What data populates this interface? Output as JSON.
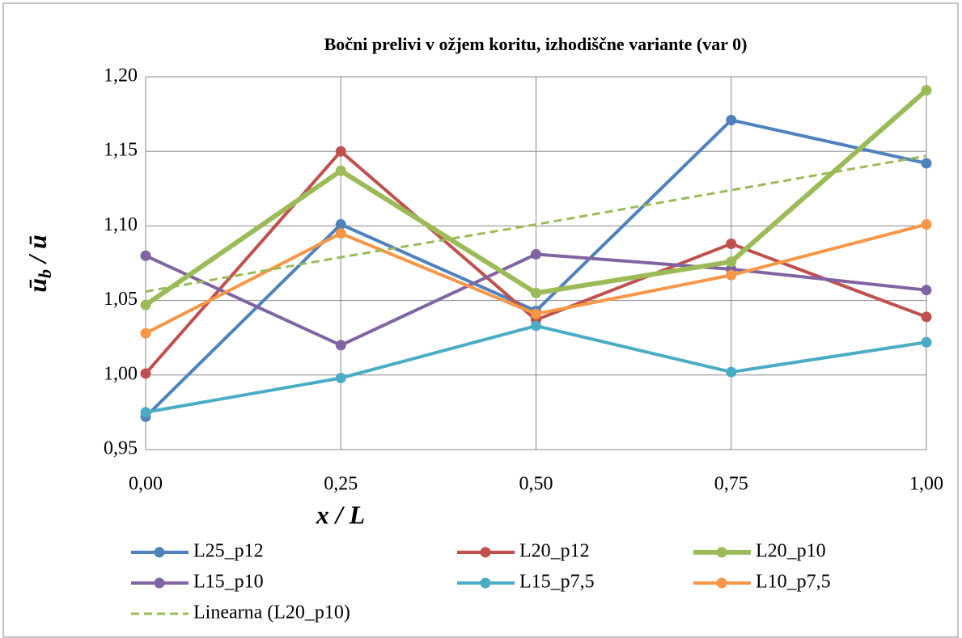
{
  "chart_data": {
    "type": "line",
    "title": "Bočni prelivi v ožjem koritu, izhodiščne variante (var 0)",
    "x_label": "x / L",
    "y_label": [
      "ū",
      "b",
      " / ū"
    ],
    "x": [
      0,
      0.25,
      0.5,
      0.75,
      1
    ],
    "xlim": [
      0,
      1
    ],
    "xticks": [
      {
        "value": 0,
        "label": "0,00"
      },
      {
        "value": 0.25,
        "label": "0,25"
      },
      {
        "value": 0.5,
        "label": "0,50"
      },
      {
        "value": 0.75,
        "label": "0,75"
      },
      {
        "value": 1,
        "label": "1,00"
      }
    ],
    "ylim": [
      0.95,
      1.2
    ],
    "yticks": [
      {
        "value": 0.95,
        "label": "0,95"
      },
      {
        "value": 1.0,
        "label": "1,00"
      },
      {
        "value": 1.05,
        "label": "1,05"
      },
      {
        "value": 1.1,
        "label": "1,10"
      },
      {
        "value": 1.15,
        "label": "1,15"
      },
      {
        "value": 1.2,
        "label": "1,20"
      }
    ],
    "grid": true,
    "legend": "bottom",
    "series": [
      {
        "name": "L25_p12",
        "color": "#4f81bd",
        "values": [
          0.972,
          1.101,
          1.043,
          1.171,
          1.142
        ]
      },
      {
        "name": "L20_p12",
        "color": "#c0504d",
        "values": [
          1.001,
          1.15,
          1.037,
          1.088,
          1.039
        ]
      },
      {
        "name": "L20_p10",
        "color": "#9bbb59",
        "values": [
          1.047,
          1.137,
          1.055,
          1.076,
          1.191
        ]
      },
      {
        "name": "L15_p10",
        "color": "#8064a2",
        "values": [
          1.08,
          1.02,
          1.081,
          1.071,
          1.057
        ]
      },
      {
        "name": "L15_p7,5",
        "color": "#4bacc6",
        "values": [
          0.975,
          0.998,
          1.033,
          1.002,
          1.022
        ]
      },
      {
        "name": "L10_p7,5",
        "color": "#f79646",
        "values": [
          1.028,
          1.095,
          1.041,
          1.067,
          1.101
        ]
      },
      {
        "name": "Linearna (L20_p10)",
        "color": "#9bbb59",
        "dashed": true,
        "markers": false,
        "values": [
          1.056,
          1.079,
          1.101,
          1.124,
          1.147
        ]
      }
    ]
  }
}
